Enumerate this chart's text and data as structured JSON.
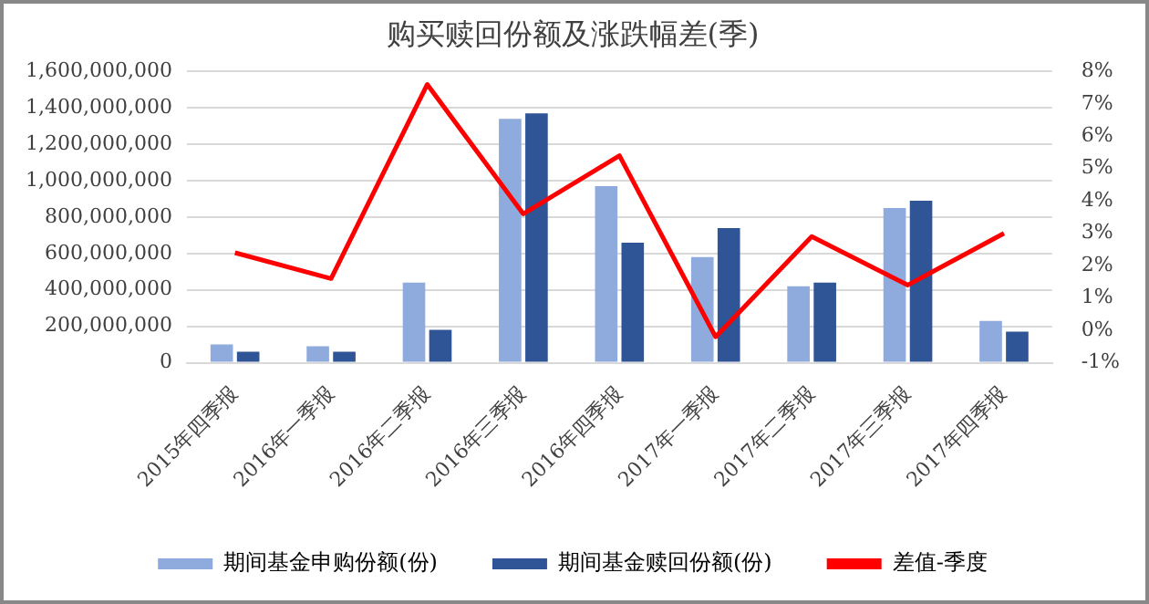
{
  "chart_data": {
    "type": "bar",
    "title": "购买赎回份额及涨跌幅差(季)",
    "categories": [
      "2015年四季报",
      "2016年一季报",
      "2016年二季报",
      "2016年三季报",
      "2016年四季报",
      "2017年一季报",
      "2017年二季报",
      "2017年三季报",
      "2017年四季报"
    ],
    "series": [
      {
        "name": "期间基金申购份额(份)",
        "color": "#8faadc",
        "values": [
          100000000,
          90000000,
          440000000,
          1340000000,
          970000000,
          580000000,
          420000000,
          850000000,
          230000000
        ]
      },
      {
        "name": "期间基金赎回份额(份)",
        "color": "#2f5597",
        "values": [
          60000000,
          60000000,
          180000000,
          1370000000,
          660000000,
          740000000,
          440000000,
          890000000,
          170000000
        ]
      },
      {
        "name": "差值-季度",
        "type": "line",
        "axis": "y2",
        "color": "#ff0000",
        "values": [
          2.4,
          1.6,
          7.6,
          3.6,
          5.4,
          -0.2,
          2.9,
          1.4,
          3.0
        ]
      }
    ],
    "ylim": [
      0,
      1600000000
    ],
    "yticks": [
      0,
      {
        "value": 200000000,
        "label": "200,000,000"
      },
      {
        "value": 400000000,
        "label": "400,000,000"
      },
      {
        "value": 600000000,
        "label": "600,000,000"
      },
      {
        "value": 800000000,
        "label": "800,000,000"
      },
      {
        "value": 1000000000,
        "label": "1,000,000,000"
      },
      {
        "value": 1200000000,
        "label": "1,200,000,000"
      },
      {
        "value": 1400000000,
        "label": "1,400,000,000"
      },
      {
        "value": 1600000000,
        "label": "1,600,000,000"
      }
    ],
    "y2lim": [
      -1,
      8
    ],
    "y2ticks": [
      {
        "value": -1,
        "label": "-1%"
      },
      {
        "value": 0,
        "label": "0%"
      },
      {
        "value": 1,
        "label": "1%"
      },
      {
        "value": 2,
        "label": "2%"
      },
      {
        "value": 3,
        "label": "3%"
      },
      {
        "value": 4,
        "label": "4%"
      },
      {
        "value": 5,
        "label": "5%"
      },
      {
        "value": 6,
        "label": "6%"
      },
      {
        "value": 7,
        "label": "7%"
      },
      {
        "value": 8,
        "label": "8%"
      }
    ],
    "grid": "y",
    "legend": "bottom",
    "marker": "none"
  }
}
